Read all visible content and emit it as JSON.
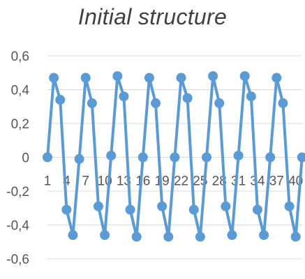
{
  "chart_data": {
    "type": "line",
    "title": "Initial structure",
    "xlabel": "",
    "ylabel": "",
    "ylim": [
      -0.6,
      0.6
    ],
    "xlim": [
      1,
      40
    ],
    "y_ticks": [
      "0,6",
      "0,4",
      "0,2",
      "0",
      "-0,2",
      "-0,4",
      "-0,6"
    ],
    "y_tick_values": [
      0.6,
      0.4,
      0.2,
      0,
      -0.2,
      -0.4,
      -0.6
    ],
    "x_tick_labels": [
      "1",
      "4",
      "7",
      "10",
      "13",
      "16",
      "19",
      "22",
      "25",
      "28",
      "31",
      "34",
      "37",
      "40"
    ],
    "x_tick_values": [
      1,
      4,
      7,
      10,
      13,
      16,
      19,
      22,
      25,
      28,
      31,
      34,
      37,
      40
    ],
    "grid": "horizontal",
    "legend": "none",
    "series": [
      {
        "color": "#5B9BD5",
        "x": [
          1,
          2,
          3,
          4,
          5,
          6,
          7,
          8,
          9,
          10,
          11,
          12,
          13,
          14,
          15,
          16,
          17,
          18,
          19,
          20,
          21,
          22,
          23,
          24,
          25,
          26,
          27,
          28,
          29,
          30,
          31,
          32,
          33,
          34,
          35,
          36,
          37,
          38,
          39,
          40,
          41
        ],
        "values": [
          0.0,
          0.47,
          0.34,
          -0.31,
          -0.46,
          -0.01,
          0.47,
          0.32,
          -0.29,
          -0.46,
          0.01,
          0.48,
          0.36,
          -0.31,
          -0.47,
          0.0,
          0.47,
          0.32,
          -0.29,
          -0.47,
          0.0,
          0.47,
          0.35,
          -0.31,
          -0.47,
          0.0,
          0.48,
          0.32,
          -0.29,
          -0.46,
          0.01,
          0.48,
          0.36,
          -0.31,
          -0.46,
          0.0,
          0.47,
          0.32,
          -0.29,
          -0.47,
          0.0
        ]
      }
    ]
  }
}
